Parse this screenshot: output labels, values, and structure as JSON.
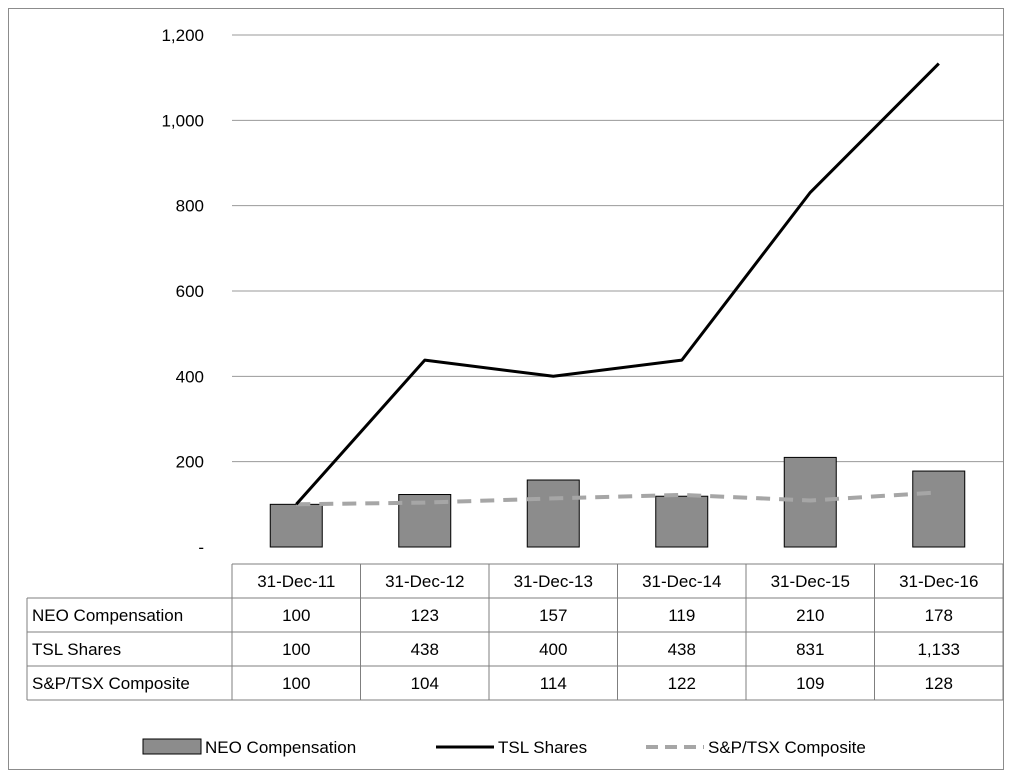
{
  "chart_data": {
    "type": "bar",
    "categories": [
      "31-Dec-11",
      "31-Dec-12",
      "31-Dec-13",
      "31-Dec-14",
      "31-Dec-15",
      "31-Dec-16"
    ],
    "series": [
      {
        "name": "NEO Compensation",
        "kind": "bar",
        "values": [
          100,
          123,
          157,
          119,
          210,
          178
        ],
        "value_labels": [
          "100",
          "123",
          "157",
          "119",
          "210",
          "178"
        ],
        "color": "#8c8c8c"
      },
      {
        "name": "TSL Shares",
        "kind": "line",
        "values": [
          100,
          438,
          400,
          438,
          831,
          1133
        ],
        "value_labels": [
          "100",
          "438",
          "400",
          "438",
          "831",
          "1,133"
        ],
        "color": "#000000"
      },
      {
        "name": "S&P/TSX Composite",
        "kind": "line-dashed",
        "values": [
          100,
          104,
          114,
          122,
          109,
          128
        ],
        "value_labels": [
          "100",
          "104",
          "114",
          "122",
          "109",
          "128"
        ],
        "color": "#a6a6a6"
      }
    ],
    "ylim": [
      0,
      1200
    ],
    "yticks": [
      0,
      200,
      400,
      600,
      800,
      1000,
      1200
    ],
    "ytick_labels": [
      "-",
      "200",
      "400",
      "600",
      "800",
      "1,000",
      "1,200"
    ],
    "grid": true,
    "data_table": true,
    "legend": "bottom",
    "title": "",
    "xlabel": "",
    "ylabel": ""
  }
}
